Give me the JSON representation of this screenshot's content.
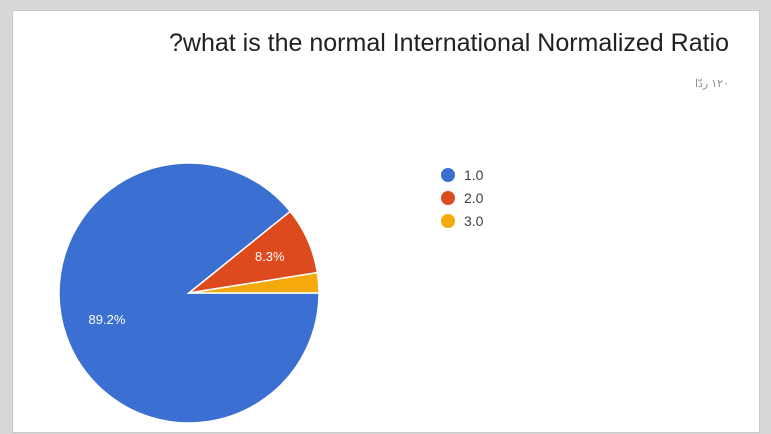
{
  "chart_data": {
    "type": "pie",
    "title": "?what is the normal International Normalized Ratio",
    "subtitle": "۱۲۰ ردّا",
    "categories": [
      "1.0",
      "2.0",
      "3.0"
    ],
    "values": [
      89.2,
      8.3,
      2.5
    ],
    "labels": [
      "89.2%",
      "8.3%",
      ""
    ],
    "colors": [
      "#3b6fd1",
      "#dc4a1e",
      "#f6a90b"
    ],
    "legend_position": "right"
  }
}
